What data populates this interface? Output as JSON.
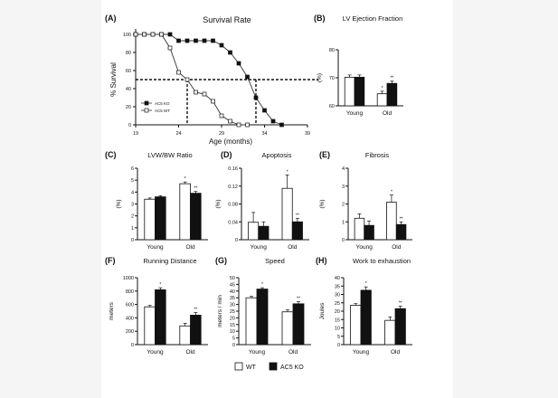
{
  "figure": {
    "legend": {
      "wt": "WT",
      "ko": "AC5 KO"
    }
  },
  "chart_data": [
    {
      "panel": "(A)",
      "type": "line",
      "title": "Survival Rate",
      "xlabel": "Age (months)",
      "ylabel": "% Survival",
      "xlim": [
        19,
        39
      ],
      "ylim": [
        0,
        100
      ],
      "xticks": [
        19,
        24,
        29,
        34,
        39
      ],
      "yticks": [
        0,
        20,
        40,
        60,
        80,
        100
      ],
      "legend_placement": "bottom-left",
      "series": [
        {
          "name": "AC5 KO",
          "marker": "filled-square",
          "x": [
            19,
            20,
            21,
            22,
            23,
            24,
            25,
            26,
            27,
            28,
            29,
            30,
            31,
            32,
            33,
            34,
            35,
            36
          ],
          "y": [
            100,
            100,
            100,
            100,
            100,
            93,
            93,
            93,
            93,
            93,
            88,
            80,
            68,
            53,
            30,
            16,
            4,
            0
          ]
        },
        {
          "name": "AC5 WT",
          "marker": "open-square",
          "x": [
            19,
            20,
            21,
            22,
            23,
            24,
            25,
            26,
            27,
            28,
            29,
            30,
            31,
            32
          ],
          "y": [
            100,
            100,
            100,
            100,
            85,
            58,
            50,
            36,
            34,
            26,
            10,
            4,
            0,
            0
          ]
        }
      ],
      "reference_lines": {
        "y": 50,
        "x": [
          25,
          33
        ]
      }
    },
    {
      "panel": "(B)",
      "type": "bar",
      "title": "LV Ejection Fraction",
      "ylabel": "(%)",
      "ylim": [
        60,
        80
      ],
      "yticks": [
        60,
        70,
        80
      ],
      "categories": [
        "Young",
        "Old"
      ],
      "series": [
        {
          "name": "WT",
          "values": [
            70.2,
            64.3
          ],
          "errors": [
            0.8,
            0.9
          ],
          "marks": [
            "",
            "*"
          ]
        },
        {
          "name": "AC5 KO",
          "values": [
            70.2,
            68.0
          ],
          "errors": [
            0.8,
            0.8
          ],
          "marks": [
            "",
            "**"
          ]
        }
      ]
    },
    {
      "panel": "(C)",
      "type": "bar",
      "title": "LVW/BW Ratio",
      "ylabel": "(%)",
      "ylim": [
        0,
        6
      ],
      "yticks": [
        0,
        1,
        2,
        3,
        4,
        5,
        6
      ],
      "categories": [
        "Young",
        "Old"
      ],
      "series": [
        {
          "name": "WT",
          "values": [
            3.4,
            4.7
          ],
          "errors": [
            0.1,
            0.15
          ],
          "marks": [
            "",
            "*"
          ]
        },
        {
          "name": "AC5 KO",
          "values": [
            3.6,
            3.9
          ],
          "errors": [
            0.1,
            0.15
          ],
          "marks": [
            "",
            "**"
          ]
        }
      ]
    },
    {
      "panel": "(D)",
      "type": "bar",
      "title": "Apoptosis",
      "ylabel": "(%)",
      "ylim": [
        0,
        0.16
      ],
      "yticks": [
        0,
        0.04,
        0.08,
        0.12,
        0.16
      ],
      "categories": [
        "Young",
        "Old"
      ],
      "series": [
        {
          "name": "WT",
          "values": [
            0.039,
            0.115
          ],
          "errors": [
            0.022,
            0.03
          ],
          "marks": [
            "",
            "*"
          ]
        },
        {
          "name": "AC5 KO",
          "values": [
            0.03,
            0.04
          ],
          "errors": [
            0.01,
            0.008
          ],
          "marks": [
            "",
            "**"
          ]
        }
      ]
    },
    {
      "panel": "(E)",
      "type": "bar",
      "title": "Fibrosis",
      "ylabel": "(%)",
      "ylim": [
        0,
        4
      ],
      "yticks": [
        0,
        1,
        2,
        3,
        4
      ],
      "categories": [
        "Young",
        "Old"
      ],
      "series": [
        {
          "name": "WT",
          "values": [
            1.2,
            2.1
          ],
          "errors": [
            0.25,
            0.4
          ],
          "marks": [
            "",
            "*"
          ]
        },
        {
          "name": "AC5 KO",
          "values": [
            0.8,
            0.85
          ],
          "errors": [
            0.25,
            0.15
          ],
          "marks": [
            "",
            "**"
          ]
        }
      ]
    },
    {
      "panel": "(F)",
      "type": "bar",
      "title": "Running Distance",
      "ylabel": "meters",
      "ylim": [
        0,
        1000
      ],
      "yticks": [
        0,
        200,
        400,
        600,
        800,
        1000
      ],
      "categories": [
        "Young",
        "Old"
      ],
      "series": [
        {
          "name": "WT",
          "values": [
            565,
            280
          ],
          "errors": [
            20,
            40
          ],
          "marks": [
            "",
            ""
          ]
        },
        {
          "name": "AC5 KO",
          "values": [
            820,
            440
          ],
          "errors": [
            30,
            40
          ],
          "marks": [
            "*",
            "**"
          ]
        }
      ]
    },
    {
      "panel": "(G)",
      "type": "bar",
      "title": "Speed",
      "ylabel": "meters / min",
      "ylim": [
        0,
        50
      ],
      "yticks": [
        0,
        5,
        10,
        15,
        20,
        25,
        30,
        35,
        40,
        45,
        50
      ],
      "categories": [
        "Young",
        "Old"
      ],
      "series": [
        {
          "name": "WT",
          "values": [
            35,
            24.5
          ],
          "errors": [
            1,
            1.5
          ],
          "marks": [
            "",
            ""
          ]
        },
        {
          "name": "AC5 KO",
          "values": [
            41.5,
            30.5
          ],
          "errors": [
            1,
            1.5
          ],
          "marks": [
            "*",
            "**"
          ]
        }
      ]
    },
    {
      "panel": "(H)",
      "type": "bar",
      "title": "Work to exhaustion",
      "ylabel": "Joules",
      "ylim": [
        0,
        40
      ],
      "yticks": [
        0,
        5,
        10,
        15,
        20,
        25,
        30,
        35,
        40
      ],
      "categories": [
        "Young",
        "Old"
      ],
      "series": [
        {
          "name": "WT",
          "values": [
            23.5,
            14.5
          ],
          "errors": [
            1,
            2
          ],
          "marks": [
            "",
            ""
          ]
        },
        {
          "name": "AC5 KO",
          "values": [
            32.5,
            21.5
          ],
          "errors": [
            2,
            1.5
          ],
          "marks": [
            "*",
            "**"
          ]
        }
      ]
    }
  ]
}
